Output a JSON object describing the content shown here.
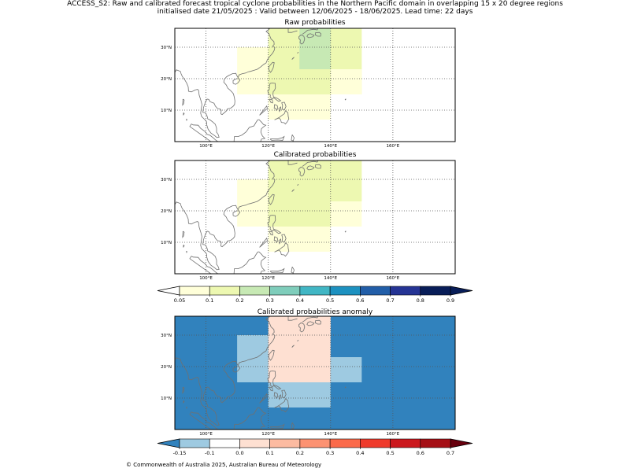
{
  "figure": {
    "title_line1": "ACCESS_S2: Raw and calibrated forecast tropical cyclone probabilities in the Northern Pacific domain in overlapping 15 x 20 degree regions",
    "title_line2": "initialised date 21/05/2025 :  Valid between 12/06/2025 - 18/06/2025. Lead time: 22 days",
    "copyright": "© Commonwealth of Australia 2025, Australian Bureau of Meteorology"
  },
  "axes": {
    "lon_ticks": [
      "100°E",
      "120°E",
      "140°E",
      "160°E"
    ],
    "lat_ticks": [
      "10°N",
      "20°N",
      "30°N"
    ],
    "lon_range": [
      90,
      180
    ],
    "lat_range": [
      0,
      36
    ]
  },
  "panels": [
    {
      "title": "Raw probabilities",
      "background": "#ffffff",
      "cells": [
        {
          "lon": [
            110,
            130
          ],
          "lat": [
            15,
            30
          ],
          "value": 0.07
        },
        {
          "lon": [
            120,
            140
          ],
          "lat": [
            15,
            36
          ],
          "value": 0.15
        },
        {
          "lon": [
            130,
            150
          ],
          "lat": [
            15,
            36
          ],
          "value": 0.15
        },
        {
          "lon": [
            130,
            140
          ],
          "lat": [
            23,
            36
          ],
          "value": 0.25
        },
        {
          "lon": [
            140,
            150
          ],
          "lat": [
            15,
            23
          ],
          "value": 0.07
        },
        {
          "lon": [
            120,
            140
          ],
          "lat": [
            7,
            15
          ],
          "value": 0.07
        }
      ]
    },
    {
      "title": "Calibrated probabilities",
      "background": "#ffffff",
      "cells": [
        {
          "lon": [
            110,
            130
          ],
          "lat": [
            15,
            30
          ],
          "value": 0.07
        },
        {
          "lon": [
            120,
            140
          ],
          "lat": [
            15,
            36
          ],
          "value": 0.15
        },
        {
          "lon": [
            130,
            150
          ],
          "lat": [
            23,
            36
          ],
          "value": 0.15
        },
        {
          "lon": [
            140,
            150
          ],
          "lat": [
            15,
            23
          ],
          "value": 0.07
        },
        {
          "lon": [
            120,
            140
          ],
          "lat": [
            7,
            15
          ],
          "value": 0.07
        }
      ]
    },
    {
      "title": "Calibrated probabilities anomaly",
      "background": "#3182bd",
      "cells": [
        {
          "lon": [
            110,
            120
          ],
          "lat": [
            15,
            30
          ],
          "value": -0.12
        },
        {
          "lon": [
            120,
            140
          ],
          "lat": [
            15,
            36
          ],
          "value": 0.0
        },
        {
          "lon": [
            130,
            140
          ],
          "lat": [
            31,
            36
          ],
          "value": 0.05
        },
        {
          "lon": [
            140,
            150
          ],
          "lat": [
            15,
            23
          ],
          "value": -0.12
        },
        {
          "lon": [
            120,
            140
          ],
          "lat": [
            7,
            15
          ],
          "value": -0.12
        }
      ]
    }
  ],
  "colorbars": [
    {
      "name": "probability",
      "ticks": [
        "0.05",
        "0.1",
        "0.2",
        "0.3",
        "0.4",
        "0.5",
        "0.6",
        "0.7",
        "0.8",
        "0.9"
      ],
      "colors": [
        "#ffffd9",
        "#edf8b1",
        "#c7e9b4",
        "#7fcdbb",
        "#41b6c4",
        "#1d91c0",
        "#225ea8",
        "#253494",
        "#081d58"
      ],
      "under": "#ffffff",
      "over": "#081d58"
    },
    {
      "name": "anomaly",
      "ticks": [
        "-0.15",
        "-0.1",
        "0.0",
        "0.1",
        "0.2",
        "0.3",
        "0.4",
        "0.5",
        "0.6",
        "0.7"
      ],
      "colors": [
        "#9ecae1",
        "#ffffff",
        "#fee0d2",
        "#fcbba1",
        "#fc9272",
        "#fb6a4a",
        "#ef3b2c",
        "#cb181d",
        "#a50f15"
      ],
      "under": "#3182bd",
      "over": "#67000d"
    }
  ]
}
